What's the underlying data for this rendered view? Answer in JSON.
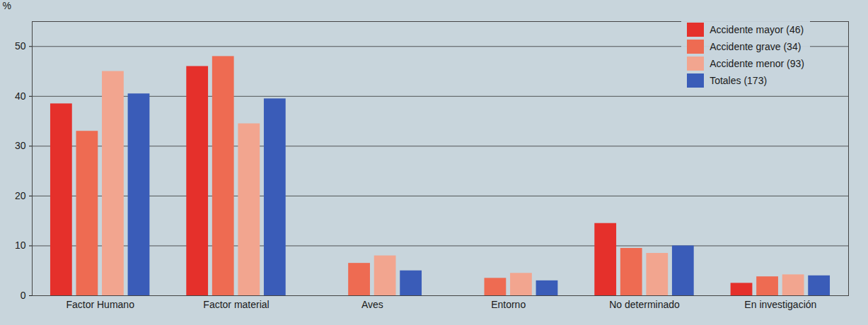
{
  "chart_data": {
    "type": "bar",
    "y_label": "%",
    "categories": [
      "Factor Humano",
      "Factor material",
      "Aves",
      "Entorno",
      "No determinado",
      "En investigación"
    ],
    "series": [
      {
        "name": "Accidente mayor (46)",
        "color": "#e5302b",
        "values": [
          38.5,
          46,
          0,
          0,
          14.5,
          2.5
        ]
      },
      {
        "name": "Accidente grave (34)",
        "color": "#ee6b52",
        "values": [
          33,
          48,
          6.5,
          3.5,
          9.5,
          3.8
        ]
      },
      {
        "name": "Accidente menor (93)",
        "color": "#f2a58f",
        "values": [
          45,
          34.5,
          8,
          4.5,
          8.5,
          4.2
        ]
      },
      {
        "name": "Totales (173)",
        "color": "#3a5cb8",
        "values": [
          40.5,
          39.5,
          5,
          3,
          10,
          4
        ]
      }
    ],
    "ylim": [
      0,
      55
    ],
    "yticks": [
      0,
      10,
      20,
      30,
      40,
      50
    ],
    "grid": true,
    "legend": "top-right"
  }
}
